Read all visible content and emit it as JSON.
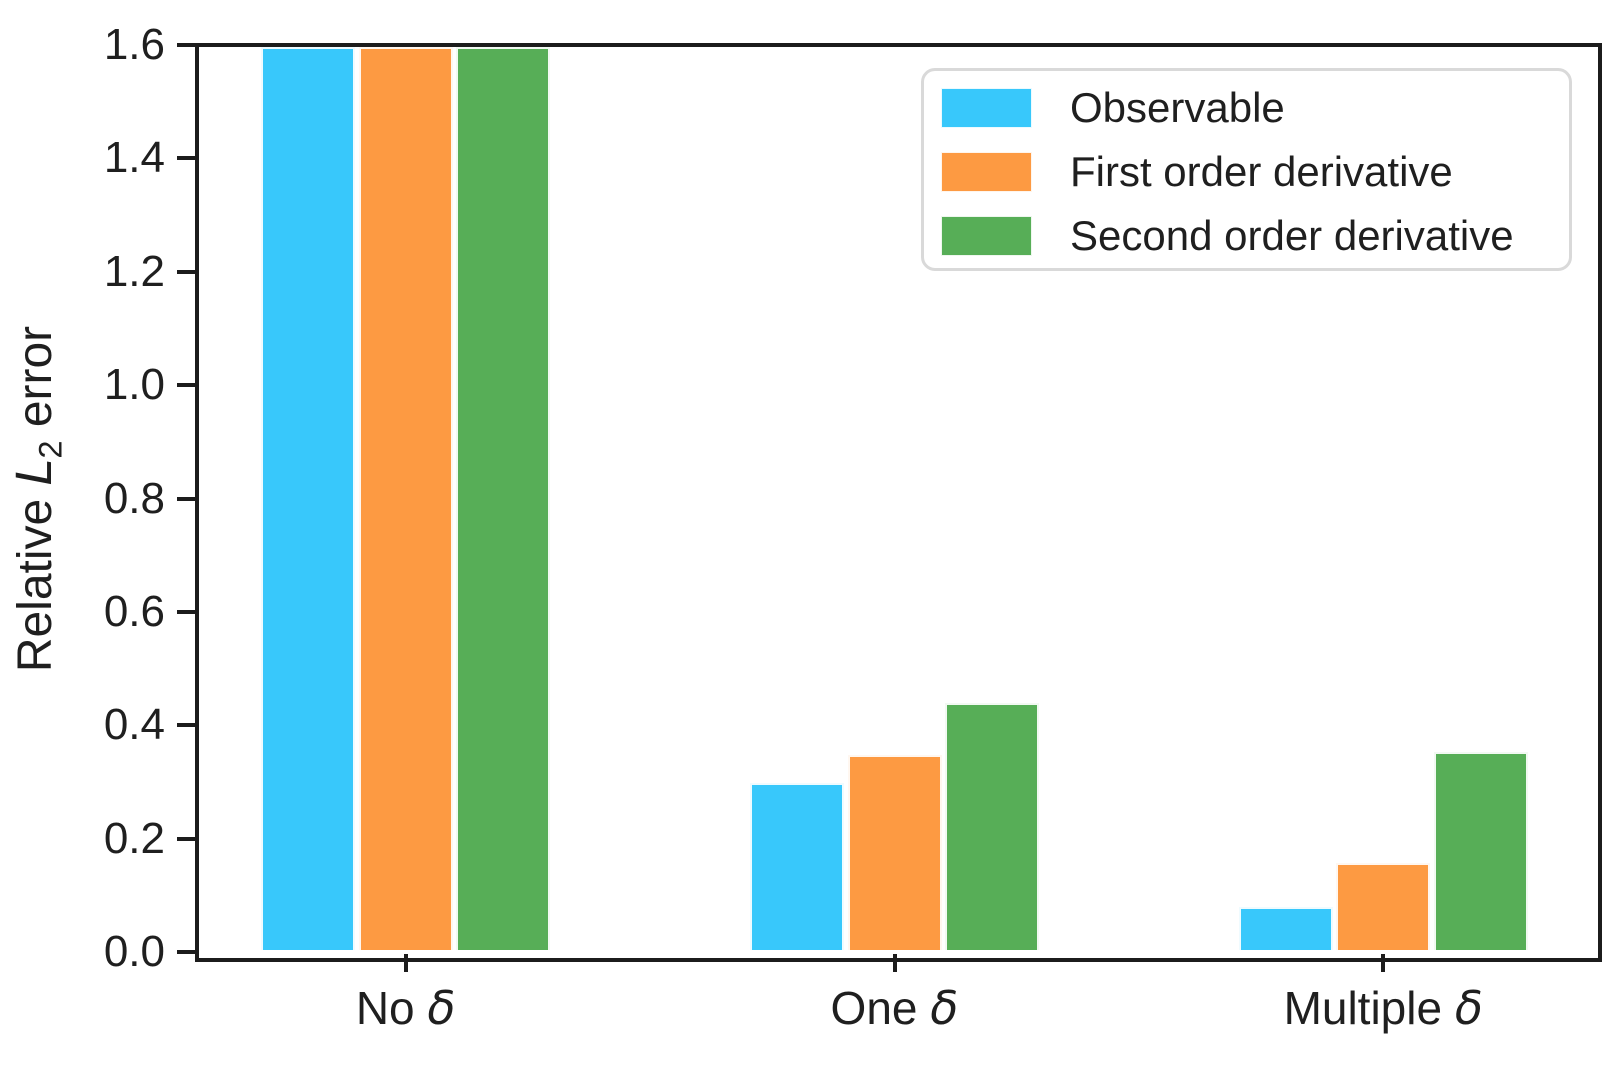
{
  "chart_data": {
    "type": "bar",
    "title": "",
    "categories": [
      {
        "prefix": "No ",
        "symbol": "δ",
        "text": "No δ"
      },
      {
        "prefix": "One ",
        "symbol": "δ",
        "text": "One δ"
      },
      {
        "prefix": "Multiple ",
        "symbol": "δ",
        "text": "Multiple δ"
      }
    ],
    "series": [
      {
        "name": "Observable",
        "color": "#38C8FB",
        "values": [
          1.6,
          0.296,
          0.076
        ],
        "clipped_at_ymax": [
          true,
          false,
          false
        ]
      },
      {
        "name": "First order derivative",
        "color": "#FD9A42",
        "values": [
          1.6,
          0.345,
          0.155
        ],
        "clipped_at_ymax": [
          true,
          false,
          false
        ]
      },
      {
        "name": "Second order derivative",
        "color": "#57AE57",
        "values": [
          1.6,
          0.437,
          0.351
        ],
        "clipped_at_ymax": [
          true,
          false,
          false
        ]
      }
    ],
    "ylabel": {
      "prefix": "Relative ",
      "math_var": "L",
      "subscript": "2",
      "suffix": " error",
      "text": "Relative L2 error"
    },
    "xlabel": "",
    "ylim": [
      0,
      1.6
    ],
    "yticks": [
      0.0,
      0.2,
      0.4,
      0.6,
      0.8,
      1.0,
      1.2,
      1.4,
      1.6
    ],
    "ytick_labels": [
      "0.0",
      "0.2",
      "0.4",
      "0.6",
      "0.8",
      "1.0",
      "1.2",
      "1.4",
      "1.6"
    ],
    "grid": false,
    "legend": {
      "position": "upper right",
      "entries": [
        "Observable",
        "First order derivative",
        "Second order derivative"
      ]
    },
    "note": "All three bars in the 'No δ' group exceed the y-axis maximum and are clipped at the top of the axes (value > 1.6)"
  },
  "colors": {
    "axis": "#1c1c1c",
    "text": "#1f1f1f",
    "legend_border": "#d9d9d9",
    "background": "#ffffff"
  }
}
